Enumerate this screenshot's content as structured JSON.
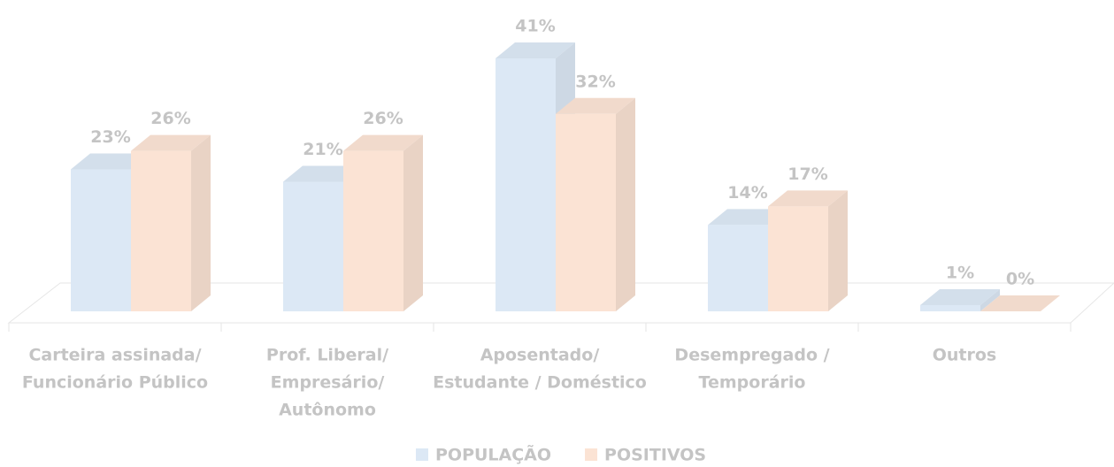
{
  "chart_data": {
    "type": "bar3d",
    "categories": [
      [
        "Carteira assinada/",
        "Funcionário Público"
      ],
      [
        "Prof. Liberal/",
        "Empresário/",
        "Autônomo"
      ],
      [
        "Aposentado/",
        "Estudante / Doméstico"
      ],
      [
        "Desempregado /",
        "Temporário"
      ],
      [
        "Outros"
      ]
    ],
    "series": [
      {
        "name": "POPULAÇÃO",
        "color": "#dce8f5",
        "values": [
          23,
          21,
          41,
          14,
          1
        ],
        "value_labels": [
          "23%",
          "21%",
          "41%",
          "14%",
          "1%"
        ]
      },
      {
        "name": "POSITIVOS",
        "color": "#fbe3d4",
        "values": [
          26,
          26,
          32,
          17,
          0
        ],
        "value_labels": [
          "26%",
          "26%",
          "32%",
          "17%",
          "0%"
        ]
      }
    ]
  }
}
